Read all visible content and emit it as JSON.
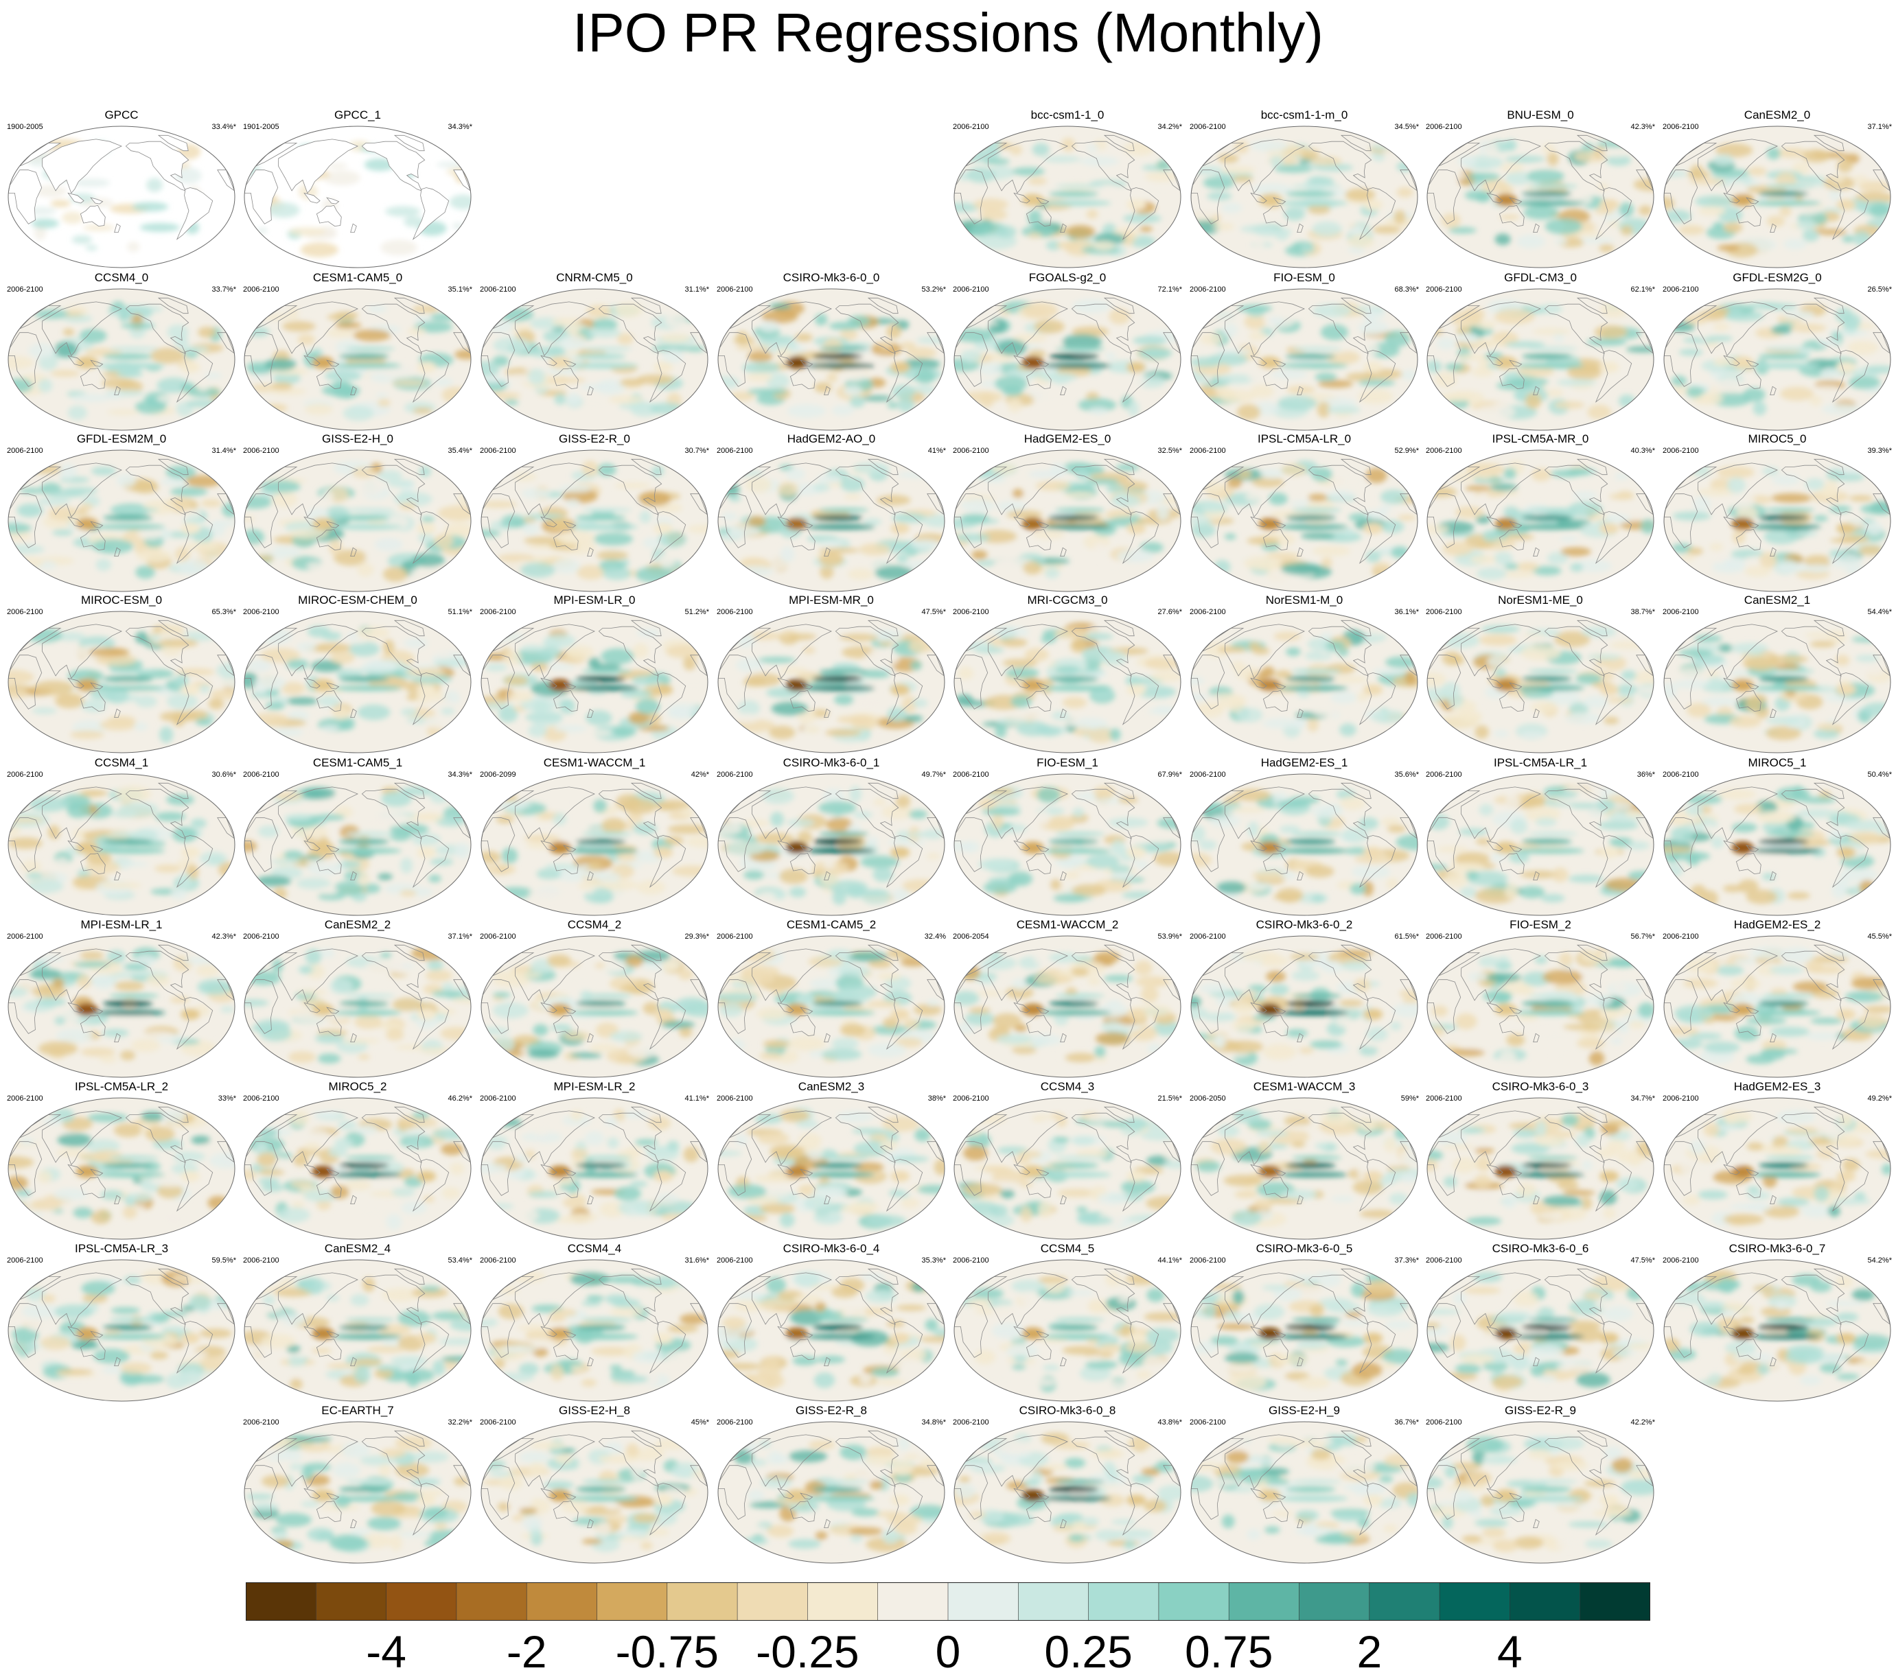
{
  "title": "IPO PR Regressions (Monthly)",
  "chart_data": {
    "type": "map",
    "title": "IPO PR Regressions (Monthly)",
    "projection": "robinson-pacific-centered",
    "panels": [
      {
        "name": "GPCC",
        "period": "1900-2005",
        "pct": "33.4%*",
        "style": "obs",
        "amp": 0.35
      },
      {
        "name": "GPCC_1",
        "period": "1901-2005",
        "pct": "34.3%*",
        "style": "obs",
        "amp": 0.35
      },
      {
        "name": "bcc-csm1-1_0",
        "period": "2006-2100",
        "pct": "34.2%*",
        "style": "model",
        "amp": 0.4
      },
      {
        "name": "bcc-csm1-1-m_0",
        "period": "2006-2100",
        "pct": "34.5%*",
        "style": "model",
        "amp": 0.4
      },
      {
        "name": "BNU-ESM_0",
        "period": "2006-2100",
        "pct": "42.3%*",
        "style": "model",
        "amp": 0.6
      },
      {
        "name": "CanESM2_0",
        "period": "2006-2100",
        "pct": "37.1%*",
        "style": "model",
        "amp": 0.55
      },
      {
        "name": "CCSM4_0",
        "period": "2006-2100",
        "pct": "33.7%*",
        "style": "model",
        "amp": 0.4
      },
      {
        "name": "CESM1-CAM5_0",
        "period": "2006-2100",
        "pct": "35.1%*",
        "style": "model",
        "amp": 0.5
      },
      {
        "name": "CNRM-CM5_0",
        "period": "2006-2100",
        "pct": "31.1%*",
        "style": "model",
        "amp": 0.3
      },
      {
        "name": "CSIRO-Mk3-6-0_0",
        "period": "2006-2100",
        "pct": "53.2%*",
        "style": "model",
        "amp": 1.0
      },
      {
        "name": "FGOALS-g2_0",
        "period": "2006-2100",
        "pct": "72.1%*",
        "style": "model",
        "amp": 0.85
      },
      {
        "name": "FIO-ESM_0",
        "period": "2006-2100",
        "pct": "68.3%*",
        "style": "model",
        "amp": 0.45
      },
      {
        "name": "GFDL-CM3_0",
        "period": "2006-2100",
        "pct": "62.1%*",
        "style": "model",
        "amp": 0.45
      },
      {
        "name": "GFDL-ESM2G_0",
        "period": "2006-2100",
        "pct": "26.5%*",
        "style": "model",
        "amp": 0.35
      },
      {
        "name": "GFDL-ESM2M_0",
        "period": "2006-2100",
        "pct": "31.4%*",
        "style": "model",
        "amp": 0.5
      },
      {
        "name": "GISS-E2-H_0",
        "period": "2006-2100",
        "pct": "35.4%*",
        "style": "model",
        "amp": 0.4
      },
      {
        "name": "GISS-E2-R_0",
        "period": "2006-2100",
        "pct": "30.7%*",
        "style": "model",
        "amp": 0.4
      },
      {
        "name": "HadGEM2-AO_0",
        "period": "2006-2100",
        "pct": "41%*",
        "style": "model",
        "amp": 0.75
      },
      {
        "name": "HadGEM2-ES_0",
        "period": "2006-2100",
        "pct": "32.5%*",
        "style": "model",
        "amp": 0.75
      },
      {
        "name": "IPSL-CM5A-LR_0",
        "period": "2006-2100",
        "pct": "52.9%*",
        "style": "model",
        "amp": 0.6
      },
      {
        "name": "IPSL-CM5A-MR_0",
        "period": "2006-2100",
        "pct": "40.3%*",
        "style": "model",
        "amp": 0.6
      },
      {
        "name": "MIROC5_0",
        "period": "2006-2100",
        "pct": "39.3%*",
        "style": "model",
        "amp": 0.8
      },
      {
        "name": "MIROC-ESM_0",
        "period": "2006-2100",
        "pct": "65.3%*",
        "style": "model",
        "amp": 0.5
      },
      {
        "name": "MIROC-ESM-CHEM_0",
        "period": "2006-2100",
        "pct": "51.1%*",
        "style": "model",
        "amp": 0.45
      },
      {
        "name": "MPI-ESM-LR_0",
        "period": "2006-2100",
        "pct": "51.2%*",
        "style": "model",
        "amp": 0.85
      },
      {
        "name": "MPI-ESM-MR_0",
        "period": "2006-2100",
        "pct": "47.5%*",
        "style": "model",
        "amp": 0.95
      },
      {
        "name": "MRI-CGCM3_0",
        "period": "2006-2100",
        "pct": "27.6%*",
        "style": "model",
        "amp": 0.5
      },
      {
        "name": "NorESM1-M_0",
        "period": "2006-2100",
        "pct": "36.1%*",
        "style": "model",
        "amp": 0.6
      },
      {
        "name": "NorESM1-ME_0",
        "period": "2006-2100",
        "pct": "38.7%*",
        "style": "model",
        "amp": 0.6
      },
      {
        "name": "CanESM2_1",
        "period": "2006-2100",
        "pct": "54.4%*",
        "style": "model",
        "amp": 0.55
      },
      {
        "name": "CCSM4_1",
        "period": "2006-2100",
        "pct": "30.6%*",
        "style": "model",
        "amp": 0.45
      },
      {
        "name": "CESM1-CAM5_1",
        "period": "2006-2100",
        "pct": "34.3%*",
        "style": "model",
        "amp": 0.45
      },
      {
        "name": "CESM1-WACCM_1",
        "period": "2006-2099",
        "pct": "42%*",
        "style": "model",
        "amp": 0.65
      },
      {
        "name": "CSIRO-Mk3-6-0_1",
        "period": "2006-2100",
        "pct": "49.7%*",
        "style": "model",
        "amp": 1.0
      },
      {
        "name": "FIO-ESM_1",
        "period": "2006-2100",
        "pct": "67.9%*",
        "style": "model",
        "amp": 0.5
      },
      {
        "name": "HadGEM2-ES_1",
        "period": "2006-2100",
        "pct": "35.6%*",
        "style": "model",
        "amp": 0.6
      },
      {
        "name": "IPSL-CM5A-LR_1",
        "period": "2006-2100",
        "pct": "36%*",
        "style": "model",
        "amp": 0.45
      },
      {
        "name": "MIROC5_1",
        "period": "2006-2100",
        "pct": "50.4%*",
        "style": "model",
        "amp": 0.9
      },
      {
        "name": "MPI-ESM-LR_1",
        "period": "2006-2100",
        "pct": "42.3%*",
        "style": "model",
        "amp": 0.9
      },
      {
        "name": "CanESM2_2",
        "period": "2006-2100",
        "pct": "37.1%*",
        "style": "model",
        "amp": 0.45
      },
      {
        "name": "CCSM4_2",
        "period": "2006-2100",
        "pct": "29.3%*",
        "style": "model",
        "amp": 0.55
      },
      {
        "name": "CESM1-CAM5_2",
        "period": "2006-2100",
        "pct": "32.4%",
        "style": "model",
        "amp": 0.55
      },
      {
        "name": "CESM1-WACCM_2",
        "period": "2006-2054",
        "pct": "53.9%*",
        "style": "model",
        "amp": 0.7
      },
      {
        "name": "CSIRO-Mk3-6-0_2",
        "period": "2006-2100",
        "pct": "61.5%*",
        "style": "model",
        "amp": 1.0
      },
      {
        "name": "FIO-ESM_2",
        "period": "2006-2100",
        "pct": "56.7%*",
        "style": "model",
        "amp": 0.45
      },
      {
        "name": "HadGEM2-ES_2",
        "period": "2006-2100",
        "pct": "45.5%*",
        "style": "model",
        "amp": 0.55
      },
      {
        "name": "IPSL-CM5A-LR_2",
        "period": "2006-2100",
        "pct": "33%*",
        "style": "model",
        "amp": 0.5
      },
      {
        "name": "MIROC5_2",
        "period": "2006-2100",
        "pct": "46.2%*",
        "style": "model",
        "amp": 0.85
      },
      {
        "name": "MPI-ESM-LR_2",
        "period": "2006-2100",
        "pct": "41.1%*",
        "style": "model",
        "amp": 0.7
      },
      {
        "name": "CanESM2_3",
        "period": "2006-2100",
        "pct": "38%*",
        "style": "model",
        "amp": 0.6
      },
      {
        "name": "CCSM4_3",
        "period": "2006-2100",
        "pct": "21.5%*",
        "style": "model",
        "amp": 0.4
      },
      {
        "name": "CESM1-WACCM_3",
        "period": "2006-2050",
        "pct": "59%*",
        "style": "model",
        "amp": 0.75
      },
      {
        "name": "CSIRO-Mk3-6-0_3",
        "period": "2006-2100",
        "pct": "34.7%*",
        "style": "model",
        "amp": 0.9
      },
      {
        "name": "HadGEM2-ES_3",
        "period": "2006-2100",
        "pct": "49.2%*",
        "style": "model",
        "amp": 0.7
      },
      {
        "name": "IPSL-CM5A-LR_3",
        "period": "2006-2100",
        "pct": "59.5%*",
        "style": "model",
        "amp": 0.55
      },
      {
        "name": "CanESM2_4",
        "period": "2006-2100",
        "pct": "53.4%*",
        "style": "model",
        "amp": 0.6
      },
      {
        "name": "CCSM4_4",
        "period": "2006-2100",
        "pct": "31.6%*",
        "style": "model",
        "amp": 0.5
      },
      {
        "name": "CSIRO-Mk3-6-0_4",
        "period": "2006-2100",
        "pct": "35.3%*",
        "style": "model",
        "amp": 0.75
      },
      {
        "name": "CCSM4_5",
        "period": "2006-2100",
        "pct": "44.1%*",
        "style": "model",
        "amp": 0.5
      },
      {
        "name": "CSIRO-Mk3-6-0_5",
        "period": "2006-2100",
        "pct": "37.3%*",
        "style": "model",
        "amp": 0.95
      },
      {
        "name": "CSIRO-Mk3-6-0_6",
        "period": "2006-2100",
        "pct": "47.5%*",
        "style": "model",
        "amp": 0.95
      },
      {
        "name": "CSIRO-Mk3-6-0_7",
        "period": "2006-2100",
        "pct": "54.2%*",
        "style": "model",
        "amp": 0.95
      },
      {
        "name": "EC-EARTH_7",
        "period": "2006-2100",
        "pct": "32.2%*",
        "style": "model",
        "amp": 0.45
      },
      {
        "name": "GISS-E2-H_8",
        "period": "2006-2100",
        "pct": "45%*",
        "style": "model",
        "amp": 0.5
      },
      {
        "name": "GISS-E2-R_8",
        "period": "2006-2100",
        "pct": "34.8%*",
        "style": "model",
        "amp": 0.45
      },
      {
        "name": "CSIRO-Mk3-6-0_8",
        "period": "2006-2100",
        "pct": "43.8%*",
        "style": "model",
        "amp": 0.95
      },
      {
        "name": "GISS-E2-H_9",
        "period": "2006-2100",
        "pct": "36.7%*",
        "style": "model",
        "amp": 0.4
      },
      {
        "name": "GISS-E2-R_9",
        "period": "2006-2100",
        "pct": "42.2%*",
        "style": "model",
        "amp": 0.4
      }
    ],
    "colorbar": {
      "colors": [
        "#5a3507",
        "#7c4a0d",
        "#935413",
        "#a86d23",
        "#c08a3c",
        "#d4a95e",
        "#e4c98e",
        "#efdcb4",
        "#f4ead0",
        "#f3efe6",
        "#e4efec",
        "#cae8e2",
        "#acdfd6",
        "#8ad1c3",
        "#5eb5a5",
        "#3e9a8c",
        "#1f8074",
        "#04665c",
        "#03544b",
        "#013b32"
      ],
      "tick_labels": [
        "-4",
        "-2",
        "-0.75",
        "-0.25",
        "0",
        "0.25",
        "0.75",
        "2",
        "4"
      ]
    }
  }
}
